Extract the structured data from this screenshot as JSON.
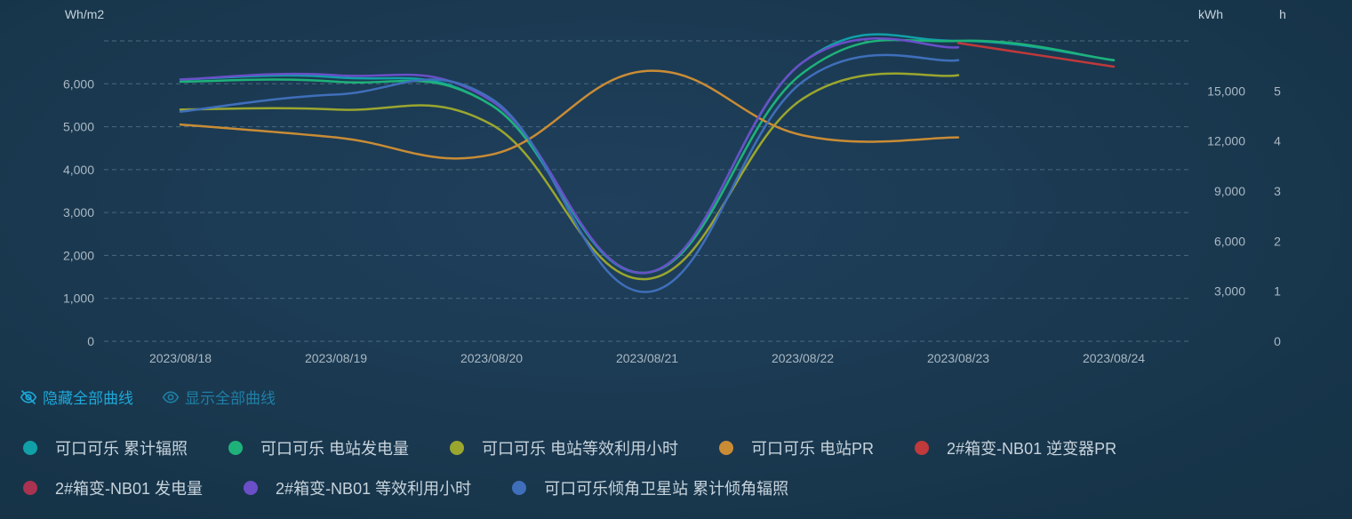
{
  "toolbar": {
    "hide_all": "隐藏全部曲线",
    "show_all": "显示全部曲线"
  },
  "chart_data": {
    "type": "line",
    "x": [
      "2023/08/18",
      "2023/08/19",
      "2023/08/20",
      "2023/08/21",
      "2023/08/22",
      "2023/08/23",
      "2023/08/24"
    ],
    "axes": {
      "left": {
        "unit": "Wh/m2",
        "range": [
          0,
          7000
        ],
        "ticks": [
          0,
          1000,
          2000,
          3000,
          4000,
          5000,
          6000
        ]
      },
      "right_kwh": {
        "unit": "kWh",
        "range": [
          0,
          18000
        ],
        "ticks": [
          0,
          3000,
          6000,
          9000,
          12000,
          15000
        ]
      },
      "right_h": {
        "unit": "h",
        "range": [
          0,
          6
        ],
        "ticks": [
          0,
          1,
          2,
          3,
          4,
          5
        ]
      }
    },
    "grid": true,
    "legend_position": "bottom",
    "series": [
      {
        "name": "可口可乐 累计辐照",
        "color": "#11a0a8",
        "values": [
          6100,
          6150,
          5500,
          1600,
          6500,
          7000,
          6550
        ]
      },
      {
        "name": "可口可乐 电站发电量",
        "color": "#1eb27a",
        "values": [
          6050,
          6050,
          5500,
          1600,
          6250,
          7000,
          6550
        ]
      },
      {
        "name": "可口可乐 电站等效利用小时",
        "color": "#9aa62e",
        "values": [
          5400,
          5400,
          5050,
          1450,
          5650,
          6200,
          null
        ]
      },
      {
        "name": "可口可乐 电站PR",
        "color": "#c98c35",
        "values": [
          5050,
          4750,
          4350,
          6300,
          4800,
          4750,
          null
        ]
      },
      {
        "name": "2#箱变-NB01 逆变器PR",
        "color": "#c0393b",
        "values": [
          null,
          null,
          null,
          null,
          null,
          6950,
          6400
        ]
      },
      {
        "name": "2#箱变-NB01 发电量",
        "color": "#a93350",
        "values": [
          null,
          null,
          null,
          null,
          null,
          6850,
          null
        ]
      },
      {
        "name": "2#箱变-NB01 等效利用小时",
        "color": "#6a4fc8",
        "values": [
          6100,
          6200,
          5600,
          1600,
          6500,
          6850,
          null
        ]
      },
      {
        "name": "可口可乐倾角卫星站 累计倾角辐照",
        "color": "#3f6fba",
        "values": [
          5350,
          5750,
          5650,
          1150,
          6050,
          6550,
          null
        ]
      }
    ]
  }
}
